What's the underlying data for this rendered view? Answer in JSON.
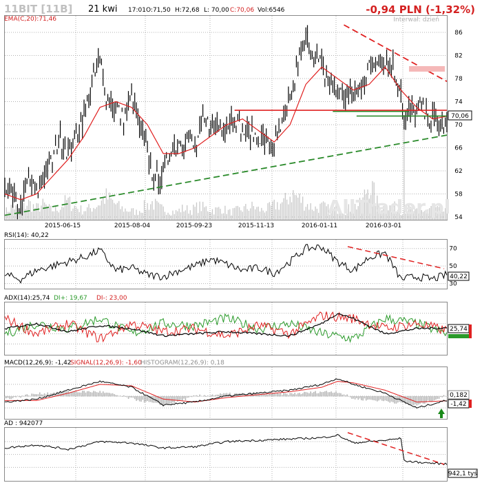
{
  "header": {
    "symbol": "11BIT [11B]",
    "date": "21 kwi",
    "time": "17:01",
    "open": "O:71,50",
    "high": "H:72,68",
    "low": "L: 70,00",
    "close": "C:70,06",
    "volume": "Vol:6546",
    "change": "-0,94 PLN (-1,32%)",
    "interval": "Interwał: dzień",
    "watermark": "AllTrader.pl"
  },
  "colors": {
    "price": "#000000",
    "ema": "#e02020",
    "trend_red": "#e02020",
    "trend_green": "#2a8a2a",
    "volume": "#c8c8c8",
    "grid": "#b0b0b0",
    "change": "#d42020",
    "di_plus": "#2a9a2a",
    "di_minus": "#e02020"
  },
  "chart_data": [
    {
      "type": "line",
      "panel": "price",
      "legend": "EMA(C,20):71,46",
      "x_tick_labels": [
        "2015-06-15",
        "2015-08-04",
        "2015-09-23",
        "2015-11-13",
        "2016-01-11",
        "2016-03-01"
      ],
      "y_ticks": [
        54,
        58,
        62,
        66,
        70,
        74,
        78,
        82,
        86
      ],
      "ylim": [
        54,
        88
      ],
      "last_value_label": "70,06",
      "series": [
        {
          "name": "Close",
          "x": [
            0,
            5,
            10,
            15,
            20,
            25,
            30,
            35,
            40,
            45,
            50,
            55,
            60,
            65,
            70,
            75,
            80,
            85,
            90,
            95,
            100,
            105,
            110,
            115,
            120,
            125,
            130,
            135,
            140,
            145,
            150,
            155,
            160,
            165,
            170,
            175,
            180,
            185,
            190,
            195,
            200,
            205,
            210,
            215,
            220,
            225,
            230,
            235,
            240,
            245,
            250,
            252,
            255,
            260,
            265,
            270,
            275,
            279
          ],
          "values": [
            60,
            57,
            55,
            61,
            58,
            62,
            64,
            68,
            65,
            68,
            72,
            77,
            81,
            74,
            73,
            71,
            75,
            70,
            65,
            60,
            62,
            66,
            67,
            68,
            66,
            70,
            70,
            70,
            70,
            72,
            69,
            68,
            68,
            67,
            66,
            70,
            74,
            80,
            85,
            82,
            80,
            77,
            76,
            75,
            75,
            77,
            80,
            82,
            81,
            80,
            76,
            70,
            72,
            73,
            72,
            71,
            69,
            70
          ]
        },
        {
          "name": "EMA(C,20)",
          "x": [
            0,
            10,
            20,
            30,
            40,
            50,
            60,
            70,
            80,
            90,
            100,
            110,
            120,
            130,
            140,
            150,
            160,
            170,
            180,
            190,
            200,
            210,
            220,
            230,
            240,
            250,
            260,
            270,
            279
          ],
          "values": [
            58,
            57,
            58,
            61,
            64,
            68,
            73,
            74,
            73,
            70,
            65,
            65,
            66,
            68,
            70,
            71,
            69,
            67,
            70,
            77,
            80,
            78,
            76,
            77,
            80,
            76,
            73,
            71,
            71.46
          ]
        }
      ],
      "volume": [
        4,
        7,
        5,
        9,
        6,
        8,
        5,
        6,
        10,
        7,
        5,
        6,
        8,
        12,
        9,
        6,
        5,
        4,
        7,
        9,
        6,
        5,
        4,
        6,
        5,
        7,
        6,
        5,
        6,
        4,
        5,
        6,
        7,
        5,
        6,
        8,
        9,
        14,
        11,
        8,
        6,
        7,
        5,
        6,
        5,
        7,
        8,
        20,
        9,
        6,
        7,
        5,
        6,
        4,
        5,
        6,
        5,
        4
      ],
      "trend_lines": [
        {
          "name": "rising support",
          "color": "green",
          "from": [
            0,
            54.3
          ],
          "to": [
            279,
            68.2
          ]
        },
        {
          "name": "falling resistance",
          "color": "red",
          "from": [
            214,
            87.3
          ],
          "to": [
            279,
            77.5
          ]
        },
        {
          "name": "horizontal 72,5",
          "color": "red",
          "from": [
            145,
            72.5
          ],
          "to": [
            279,
            72.5
          ]
        },
        {
          "name": "horizontal 72,3 green",
          "color": "green",
          "from": [
            207,
            72.3
          ],
          "to": [
            255,
            72.3
          ]
        },
        {
          "name": "horizontal 71,5 green",
          "color": "green",
          "from": [
            222,
            71.5
          ],
          "to": [
            279,
            71.5
          ]
        }
      ]
    },
    {
      "type": "line",
      "panel": "rsi",
      "legend": "RSI(14): 40,22",
      "y_ticks": [
        30,
        50,
        70
      ],
      "ylim": [
        25,
        80
      ],
      "last_value_label": "40,22",
      "series": [
        {
          "name": "RSI(14)",
          "x": [
            0,
            10,
            20,
            30,
            40,
            50,
            60,
            70,
            80,
            90,
            100,
            110,
            120,
            130,
            140,
            150,
            160,
            170,
            180,
            190,
            200,
            210,
            220,
            230,
            240,
            250,
            260,
            270,
            279
          ],
          "values": [
            40,
            35,
            45,
            50,
            55,
            60,
            68,
            45,
            48,
            40,
            38,
            45,
            50,
            58,
            52,
            45,
            48,
            42,
            55,
            70,
            72,
            55,
            45,
            60,
            65,
            35,
            38,
            35,
            40.22
          ]
        }
      ]
    },
    {
      "type": "line",
      "panel": "adx",
      "legend": {
        "adx": "ADX(14):25,74",
        "di_plus": "DI+: 19,67",
        "di_minus": "DI-: 23,00"
      },
      "ylim": [
        0,
        50
      ],
      "last_value_label": "25,74",
      "series": [
        {
          "name": "ADX(14)",
          "x": [
            0,
            20,
            40,
            60,
            80,
            100,
            120,
            140,
            160,
            180,
            200,
            210,
            220,
            240,
            260,
            279
          ],
          "values": [
            25,
            30,
            22,
            28,
            25,
            18,
            20,
            22,
            20,
            18,
            30,
            40,
            35,
            20,
            25,
            25.74
          ]
        },
        {
          "name": "DI+",
          "x": [
            0,
            20,
            40,
            60,
            80,
            100,
            120,
            140,
            160,
            180,
            200,
            220,
            240,
            260,
            279
          ],
          "values": [
            20,
            30,
            25,
            35,
            20,
            30,
            28,
            35,
            25,
            30,
            20,
            15,
            35,
            30,
            19.67
          ]
        },
        {
          "name": "DI-",
          "x": [
            0,
            20,
            40,
            60,
            80,
            100,
            120,
            140,
            160,
            180,
            200,
            220,
            240,
            260,
            279
          ],
          "values": [
            35,
            20,
            30,
            15,
            30,
            22,
            25,
            18,
            28,
            20,
            38,
            35,
            25,
            30,
            23.0
          ]
        }
      ]
    },
    {
      "type": "line",
      "panel": "macd",
      "legend": {
        "macd": "MACD(12,26,9): -1,42",
        "signal": "SIGNAL(12,26,9): -1,60",
        "histogram": "HISTOGRAM(12,26,9): 0,18"
      },
      "ylim": [
        -6,
        8
      ],
      "last_value_labels": [
        "0,182",
        "-1,42"
      ],
      "series": [
        {
          "name": "MACD",
          "x": [
            0,
            20,
            40,
            60,
            80,
            100,
            120,
            140,
            160,
            180,
            200,
            210,
            220,
            240,
            260,
            279
          ],
          "values": [
            -2,
            -1,
            2,
            5,
            3,
            -3,
            -2,
            0,
            1,
            2,
            4,
            6,
            4,
            1,
            -4,
            -1.42
          ]
        },
        {
          "name": "SIGNAL",
          "x": [
            0,
            20,
            40,
            60,
            80,
            100,
            120,
            140,
            160,
            180,
            200,
            210,
            220,
            240,
            260,
            279
          ],
          "values": [
            -1.5,
            -1.5,
            1,
            4,
            3.5,
            -1,
            -2,
            -0.5,
            0.5,
            1.5,
            3,
            5,
            4.5,
            2,
            -2,
            -1.6
          ]
        }
      ]
    },
    {
      "type": "line",
      "panel": "ad",
      "legend": "AD : 942077",
      "last_value_label": "942,1 tyś",
      "series": [
        {
          "name": "AD",
          "x": [
            0,
            20,
            40,
            60,
            80,
            100,
            120,
            140,
            160,
            180,
            200,
            210,
            220,
            240,
            250,
            252,
            260,
            279
          ],
          "values": [
            50,
            55,
            48,
            60,
            58,
            50,
            52,
            60,
            62,
            64,
            66,
            70,
            58,
            62,
            65,
            30,
            28,
            25
          ]
        }
      ]
    }
  ]
}
